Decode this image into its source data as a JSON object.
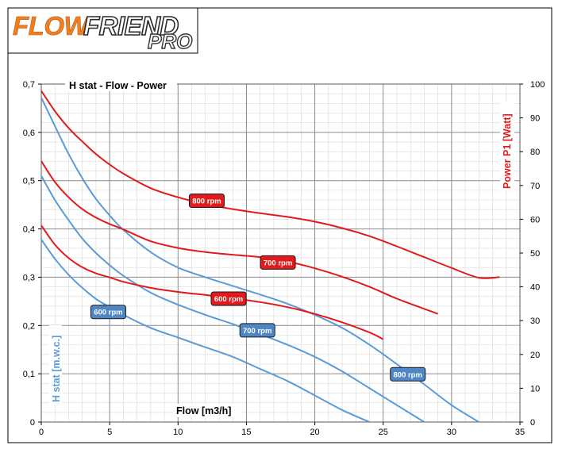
{
  "logo": {
    "word_orange": "FLOW",
    "word_dark": "FRIEND",
    "word_pro": "PRO"
  },
  "chart_data": {
    "type": "line",
    "title": "H stat - Flow - Power",
    "xlabel": "Flow [m3/h]",
    "ylabel": "H stat [m.w.c.]",
    "y2label": "Power P1  [Watt]",
    "xlim": [
      0,
      35
    ],
    "ylim": [
      0,
      0.7
    ],
    "y2lim": [
      0,
      100
    ],
    "x_ticks": [
      "0",
      "5",
      "10",
      "15",
      "20",
      "25",
      "30",
      "35"
    ],
    "y_ticks": [
      "0",
      "0,1",
      "0,2",
      "0,3",
      "0,4",
      "0,5",
      "0,6",
      "0,7"
    ],
    "y2_ticks": [
      "0",
      "10",
      "20",
      "30",
      "40",
      "50",
      "60",
      "70",
      "80",
      "90",
      "100"
    ],
    "grid": true,
    "colors": {
      "head": "#5b9bd5",
      "power": "#e31a1c",
      "head_label_fill": "#4f86c6",
      "power_label_fill": "#e31a1c"
    },
    "head_series": [
      {
        "label": "600 rpm",
        "x": [
          0,
          1,
          2,
          3,
          4,
          5,
          6,
          8,
          10,
          12,
          14,
          16,
          18,
          20,
          22,
          24
        ],
        "y": [
          0.378,
          0.338,
          0.305,
          0.278,
          0.255,
          0.238,
          0.222,
          0.195,
          0.175,
          0.155,
          0.135,
          0.11,
          0.085,
          0.055,
          0.025,
          0.0
        ]
      },
      {
        "label": "700 rpm",
        "x": [
          0,
          1,
          2,
          3,
          4,
          5,
          6,
          8,
          10,
          12,
          14,
          16,
          18,
          20,
          22,
          24,
          26,
          28
        ],
        "y": [
          0.51,
          0.46,
          0.418,
          0.38,
          0.35,
          0.325,
          0.303,
          0.268,
          0.243,
          0.222,
          0.203,
          0.182,
          0.16,
          0.135,
          0.105,
          0.07,
          0.035,
          0.0
        ]
      },
      {
        "label": "800 rpm",
        "x": [
          0,
          1,
          2,
          3,
          4,
          5,
          6,
          8,
          10,
          12,
          14,
          16,
          18,
          20,
          22,
          24,
          26,
          28,
          30,
          32
        ],
        "y": [
          0.672,
          0.613,
          0.555,
          0.505,
          0.462,
          0.428,
          0.398,
          0.352,
          0.32,
          0.3,
          0.282,
          0.264,
          0.245,
          0.222,
          0.195,
          0.16,
          0.12,
          0.078,
          0.035,
          0.0
        ]
      }
    ],
    "power_series": [
      {
        "label": "600 rpm",
        "x": [
          0,
          1,
          2,
          3,
          4,
          5,
          6,
          8,
          10,
          12,
          14,
          16,
          18,
          20,
          22,
          24,
          25
        ],
        "y": [
          58.2,
          52.5,
          48.5,
          45.8,
          44.0,
          42.8,
          41.5,
          39.7,
          38.5,
          37.6,
          36.6,
          35.5,
          34.0,
          32.0,
          29.5,
          26.5,
          24.5
        ]
      },
      {
        "label": "700 rpm",
        "x": [
          0,
          1,
          2,
          3,
          4,
          5,
          6,
          8,
          10,
          12,
          14,
          16,
          18,
          20,
          22,
          24,
          26,
          28,
          29
        ],
        "y": [
          77.2,
          71.0,
          66.5,
          63.0,
          60.5,
          58.6,
          57.0,
          53.5,
          51.5,
          50.3,
          49.5,
          48.8,
          47.5,
          45.5,
          43.0,
          40.0,
          36.5,
          33.5,
          32.0
        ]
      },
      {
        "label": "800 rpm",
        "x": [
          0,
          1,
          2,
          3,
          4,
          5,
          6,
          8,
          10,
          12,
          14,
          16,
          18,
          20,
          22,
          24,
          26,
          28,
          30,
          32,
          33.5
        ],
        "y": [
          98.0,
          92.0,
          87.0,
          83.0,
          79.3,
          76.2,
          73.5,
          69.2,
          66.5,
          64.5,
          63.0,
          61.8,
          60.7,
          59.3,
          57.4,
          55.0,
          52.0,
          48.8,
          45.6,
          42.7,
          42.9
        ]
      }
    ],
    "head_labels": [
      {
        "text": "600 rpm",
        "x": 4.9,
        "y": 0.228
      },
      {
        "text": "700 rpm",
        "x": 15.8,
        "y": 0.19
      },
      {
        "text": "800 rpm",
        "x": 26.8,
        "y": 0.099
      }
    ],
    "power_labels": [
      {
        "text": "800 rpm",
        "x": 12.1,
        "y2": 65.5
      },
      {
        "text": "700 rpm",
        "x": 17.3,
        "y2": 47.2
      },
      {
        "text": "600 rpm",
        "x": 13.7,
        "y2": 36.5
      }
    ]
  }
}
